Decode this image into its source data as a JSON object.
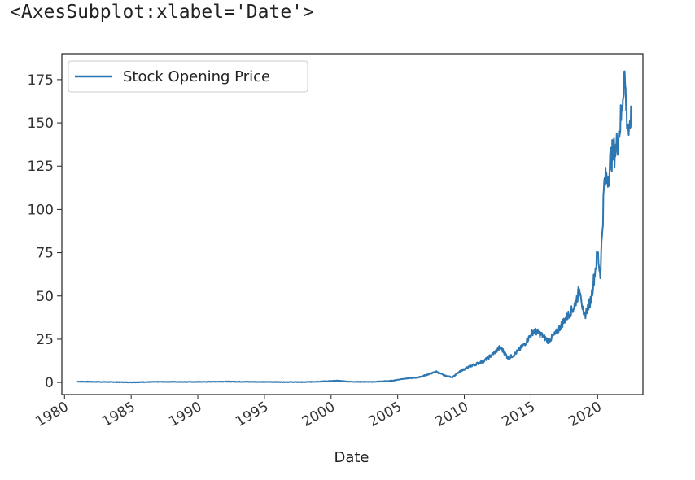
{
  "repr_text": "<AxesSubplot:xlabel='Date'>",
  "colors": {
    "series": "#2e76b0",
    "axes": "#222222",
    "legend_border": "#cccccc"
  },
  "chart_data": {
    "type": "line",
    "xlabel": "Date",
    "ylabel": "",
    "xlim": [
      1979.8,
      2023.4
    ],
    "ylim": [
      -7,
      190
    ],
    "x_ticks": [
      1980,
      1985,
      1990,
      1995,
      2000,
      2005,
      2010,
      2015,
      2020
    ],
    "x_tick_labels": [
      "1980",
      "1985",
      "1990",
      "1995",
      "2000",
      "2005",
      "2010",
      "2015",
      "2020"
    ],
    "y_ticks": [
      0,
      25,
      50,
      75,
      100,
      125,
      150,
      175
    ],
    "y_tick_labels": [
      "0",
      "25",
      "50",
      "75",
      "100",
      "125",
      "150",
      "175"
    ],
    "grid": false,
    "legend_position": "upper-left",
    "series": [
      {
        "name": "Stock Opening Price",
        "x": [
          1980.95,
          1983,
          1985,
          1987.5,
          1990,
          1992,
          1995,
          1998,
          2000,
          2000.5,
          2001.5,
          2003,
          2004.5,
          2005.5,
          2006.5,
          2007.2,
          2007.9,
          2008.5,
          2009.1,
          2009.8,
          2010.5,
          2011.5,
          2012.3,
          2012.7,
          2013.3,
          2013.8,
          2014.5,
          2015.2,
          2015.7,
          2016.3,
          2016.9,
          2017.5,
          2018.2,
          2018.7,
          2018.95,
          2019.5,
          2020.0,
          2020.2,
          2020.5,
          2020.8,
          2021.0,
          2021.4,
          2021.8,
          2022.0,
          2022.2,
          2022.4,
          2022.5
        ],
        "y": [
          0.5,
          0.3,
          0.1,
          0.4,
          0.3,
          0.5,
          0.3,
          0.2,
          0.8,
          1.0,
          0.4,
          0.3,
          0.9,
          2.2,
          2.8,
          4.5,
          6.2,
          4.0,
          3.0,
          7.0,
          9.5,
          12.5,
          17.5,
          20.5,
          14.0,
          16.5,
          22.0,
          30.0,
          28.0,
          24.0,
          28.5,
          36.0,
          43.0,
          55.0,
          37.0,
          48.0,
          75.0,
          62.0,
          115.0,
          120.0,
          130.0,
          135.0,
          155.0,
          180.0,
          155.0,
          140.0,
          160.0
        ]
      }
    ]
  }
}
